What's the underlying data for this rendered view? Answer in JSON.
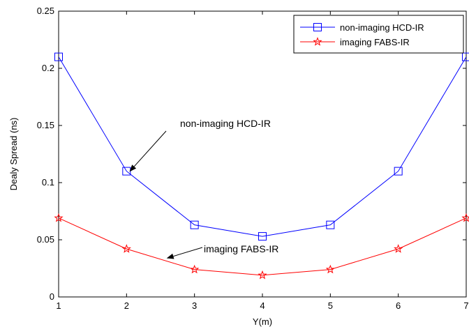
{
  "chart_data": {
    "type": "line",
    "title": "",
    "xlabel": "Y(m)",
    "ylabel": "Dealy Spread (ns)",
    "xlim": [
      1,
      7
    ],
    "ylim": [
      0,
      0.25
    ],
    "xticks": [
      1,
      2,
      3,
      4,
      5,
      6,
      7
    ],
    "yticks": [
      0,
      0.05,
      0.1,
      0.15,
      0.2,
      0.25
    ],
    "ytick_labels": [
      "0",
      "0.05",
      "0.1",
      "0.15",
      "0.2",
      "0.25"
    ],
    "grid": false,
    "legend_position": "top-right",
    "x": [
      1,
      2,
      3,
      4,
      5,
      6,
      7
    ],
    "series": [
      {
        "name": "non-imaging HCD-IR",
        "color": "#0000ff",
        "marker": "square",
        "values": [
          0.21,
          0.11,
          0.063,
          0.053,
          0.063,
          0.11,
          0.21
        ]
      },
      {
        "name": "imaging FABS-IR",
        "color": "#ff0000",
        "marker": "star",
        "values": [
          0.069,
          0.042,
          0.024,
          0.019,
          0.024,
          0.042,
          0.069
        ]
      }
    ],
    "annotations": [
      {
        "text": "non-imaging HCD-IR",
        "arrow_to": [
          2.05,
          0.11
        ]
      },
      {
        "text": "imaging FABS-IR",
        "arrow_to": [
          2.6,
          0.034
        ]
      }
    ]
  }
}
